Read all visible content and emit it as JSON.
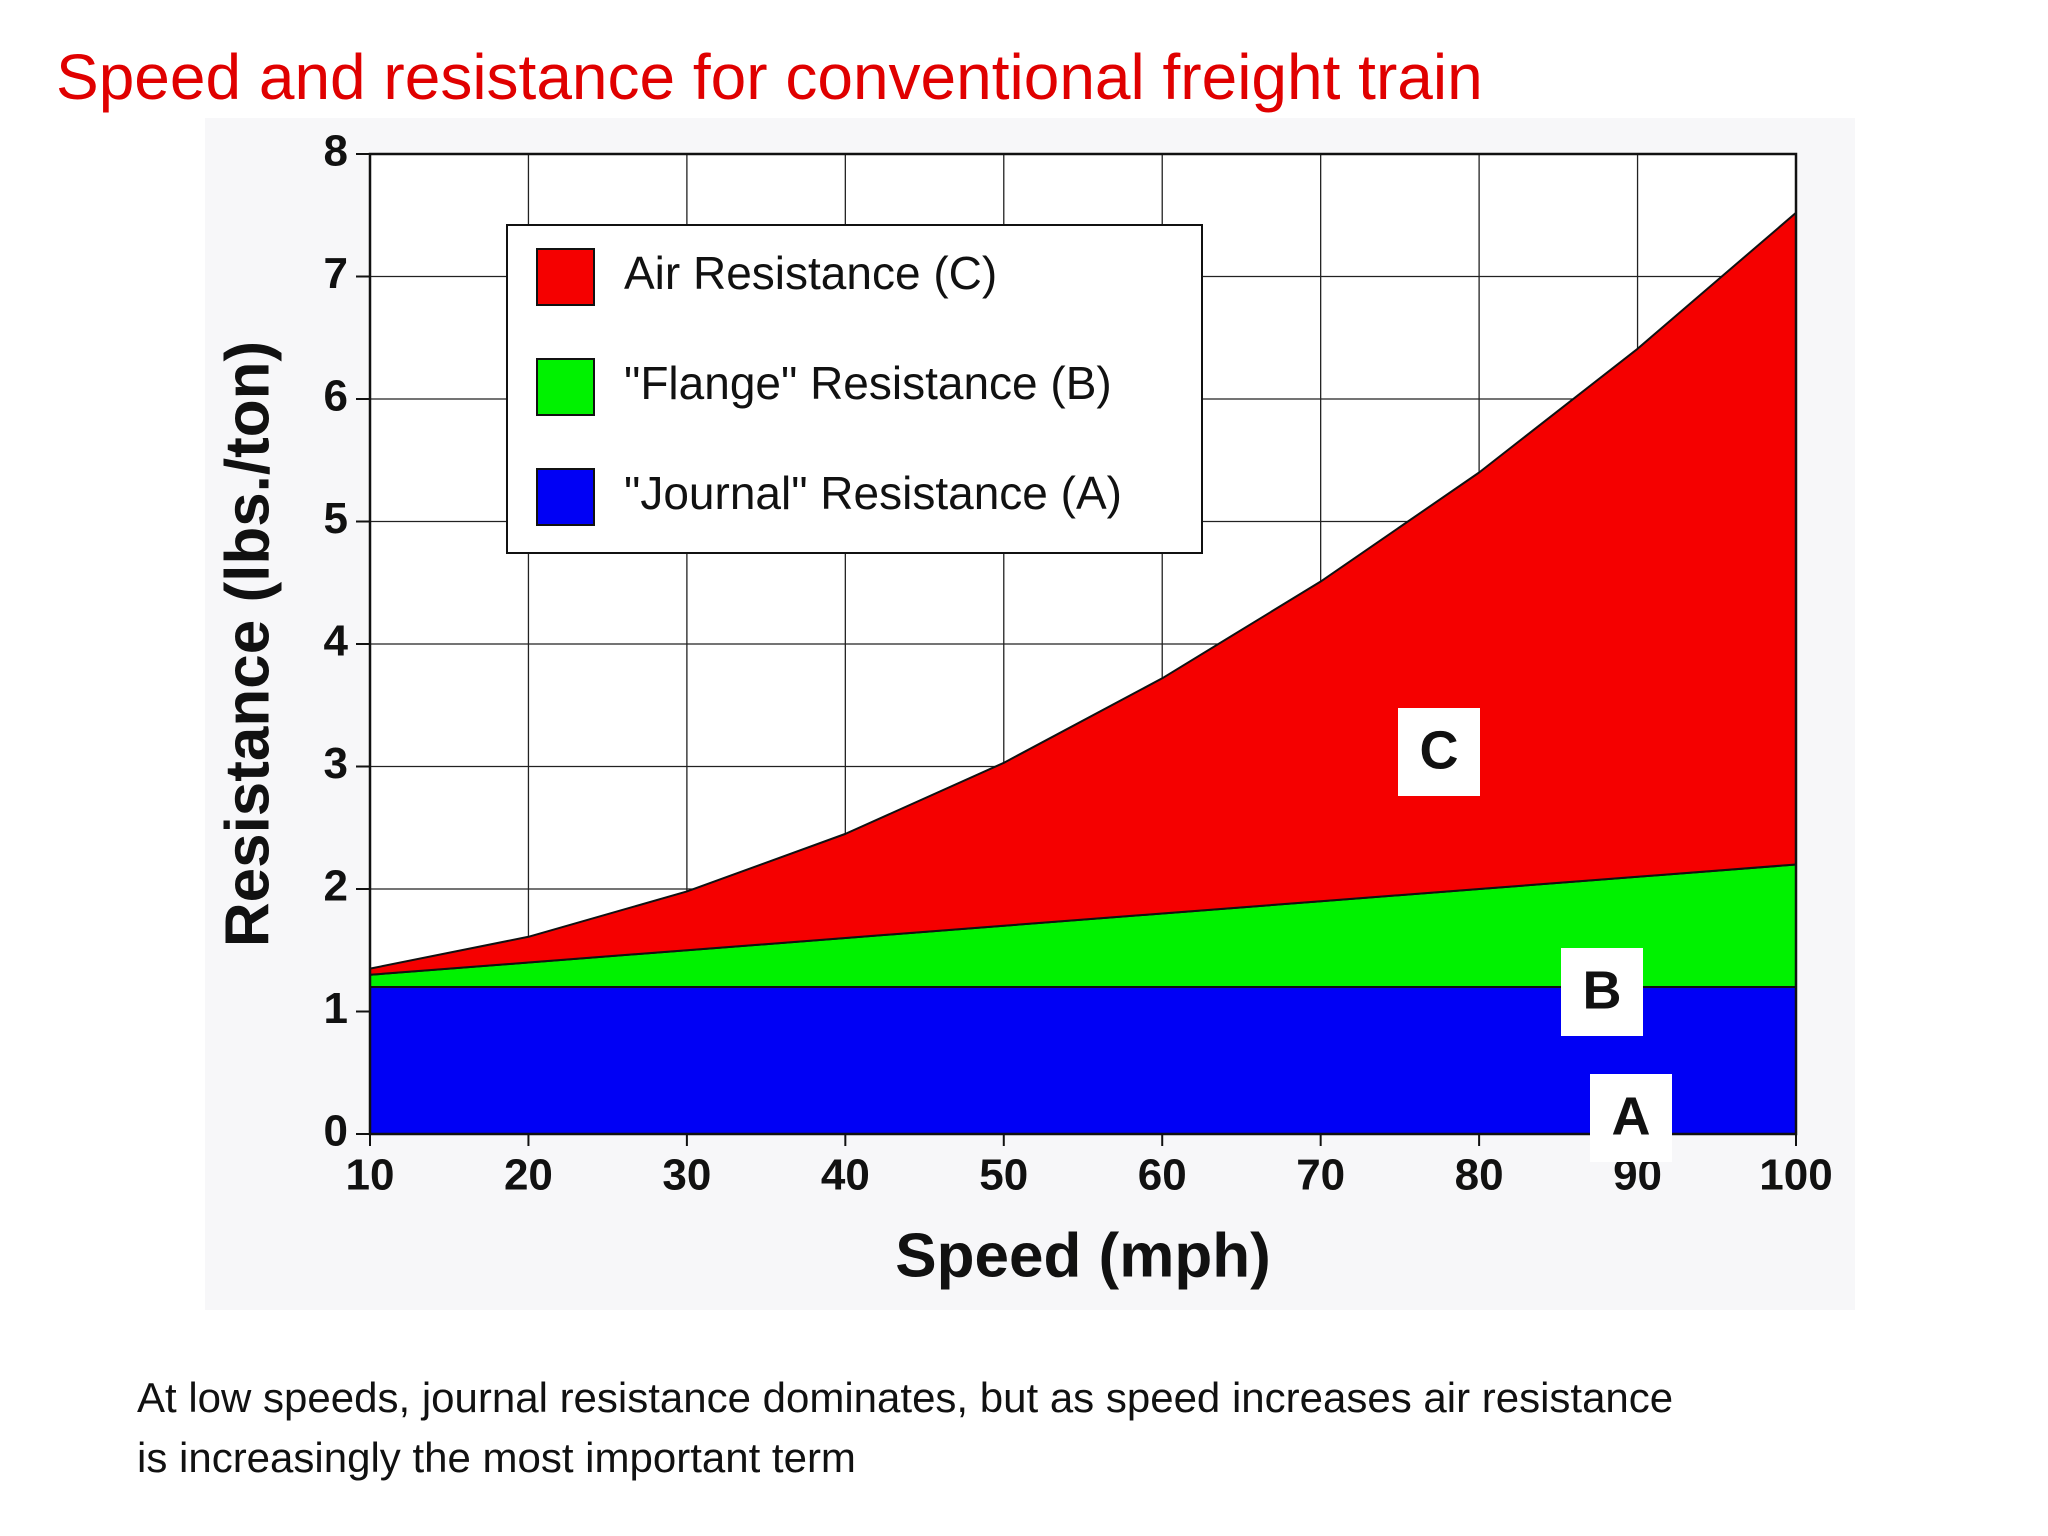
{
  "title": "Speed and resistance for conventional freight train",
  "caption": [
    "At low speeds, journal resistance dominates, but as speed increases air resistance",
    "is increasingly the most important term"
  ],
  "chart_data": {
    "type": "stacked-area",
    "x_label": "Speed (mph)",
    "y_label": "Resistance (lbs./ton)",
    "x": [
      10,
      20,
      30,
      40,
      50,
      60,
      70,
      80,
      90,
      100
    ],
    "series": [
      {
        "name": "Air Resistance (C)",
        "color": "#f50000",
        "values": [
          0.05,
          0.21,
          0.48,
          0.85,
          1.33,
          1.92,
          2.61,
          3.4,
          4.31,
          5.32
        ]
      },
      {
        "name": "\"Flange\" Resistance (B)",
        "color": "#00f200",
        "values": [
          0.1,
          0.2,
          0.3,
          0.4,
          0.5,
          0.6,
          0.7,
          0.8,
          0.9,
          1.0
        ]
      },
      {
        "name": "\"Journal\" Resistance (A)",
        "color": "#0000f5",
        "values": [
          1.2,
          1.2,
          1.2,
          1.2,
          1.2,
          1.2,
          1.2,
          1.2,
          1.2,
          1.2
        ]
      }
    ],
    "stack_order": "bottom-up from last series",
    "xlim": [
      10,
      100
    ],
    "xticks": [
      10,
      20,
      30,
      40,
      50,
      60,
      70,
      80,
      90,
      100
    ],
    "ylim": [
      0,
      8
    ],
    "yticks": [
      0,
      1,
      2,
      3,
      4,
      5,
      6,
      7,
      8
    ],
    "grid": true,
    "legend": "upper left",
    "annotations": [
      "C",
      "B",
      "A"
    ]
  }
}
